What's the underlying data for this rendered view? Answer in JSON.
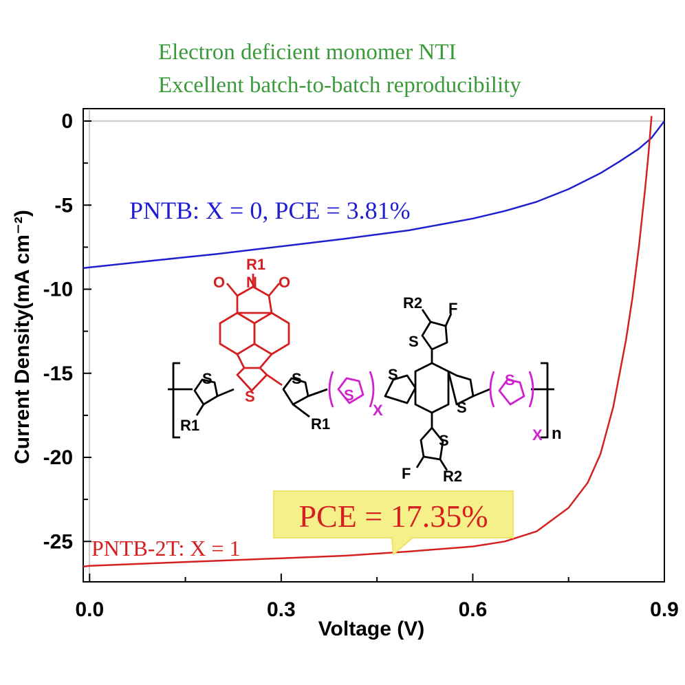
{
  "headline": {
    "line1": "Electron deficient monomer NTI",
    "line2": "Excellent batch-to-batch reproducibility",
    "color": "#3a9a3a"
  },
  "chart_data": {
    "type": "line",
    "xlabel": "Voltage (V)",
    "ylabel": "Current Density(mA cm⁻²)",
    "xlim": [
      -0.01,
      0.9
    ],
    "ylim": [
      -27.5,
      0
    ],
    "x_ticks": [
      0.0,
      0.3,
      0.6,
      0.9
    ],
    "x_tick_labels": [
      "0.0",
      "0.3",
      "0.6",
      "0.9"
    ],
    "y_ticks": [
      0,
      -5,
      -10,
      -15,
      -20,
      -25
    ],
    "y_tick_labels": [
      "0",
      "-5",
      "-10",
      "-15",
      "-20",
      "-25"
    ],
    "grid": false,
    "series": [
      {
        "name": "PNTB: X = 0, PCE = 3.81%",
        "color": "#1f1fd0",
        "x": [
          -0.01,
          0.0,
          0.1,
          0.2,
          0.3,
          0.4,
          0.5,
          0.6,
          0.65,
          0.7,
          0.75,
          0.8,
          0.83,
          0.86,
          0.88,
          0.9
        ],
        "y": [
          -8.75,
          -8.7,
          -8.3,
          -7.9,
          -7.45,
          -7.0,
          -6.5,
          -5.8,
          -5.35,
          -4.8,
          -4.05,
          -3.1,
          -2.4,
          -1.65,
          -1.0,
          0.0
        ]
      },
      {
        "name": "PNTB-2T: X = 1",
        "color": "#d42020",
        "x": [
          -0.01,
          0.0,
          0.1,
          0.2,
          0.3,
          0.4,
          0.5,
          0.6,
          0.65,
          0.7,
          0.75,
          0.78,
          0.8,
          0.82,
          0.84,
          0.85,
          0.86,
          0.87,
          0.875,
          0.88
        ],
        "y": [
          -26.5,
          -26.45,
          -26.3,
          -26.15,
          -26.0,
          -25.85,
          -25.6,
          -25.3,
          -25.0,
          -24.4,
          -23.0,
          -21.5,
          -19.8,
          -17.0,
          -13.0,
          -10.5,
          -7.5,
          -4.0,
          -2.0,
          0.3
        ]
      }
    ],
    "annotations": {
      "pce_highlight": "PCE = 17.35%",
      "highlight_fill": "#f6f08a",
      "highlight_text_color": "#d42020"
    }
  },
  "structure": {
    "labels": {
      "r1_top": "R1",
      "n": "N",
      "o": "O",
      "s": "S",
      "r1": "R1",
      "r2": "R2",
      "f": "F",
      "x": "X",
      "n_subscript": "n"
    },
    "colors": {
      "acceptor": "#d42020",
      "spacer": "#d020d0",
      "core": "#000000"
    }
  }
}
